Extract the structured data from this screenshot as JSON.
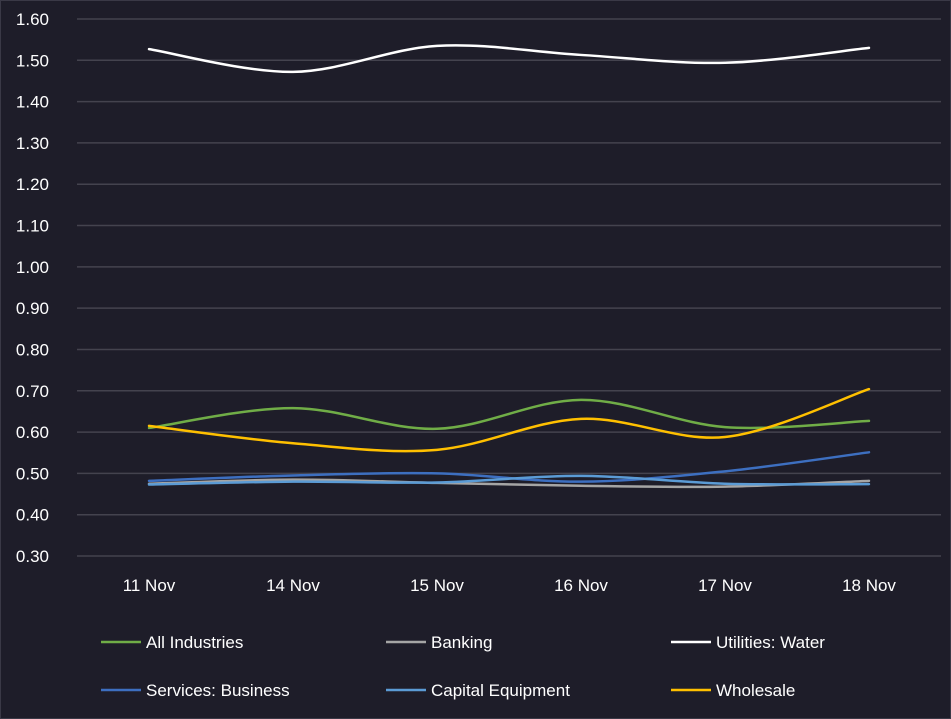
{
  "chart_data": {
    "type": "line",
    "categories": [
      "11 Nov",
      "14 Nov",
      "15 Nov",
      "16 Nov",
      "17 Nov",
      "18 Nov"
    ],
    "ylim": [
      0.3,
      1.6
    ],
    "yticks": [
      "0.30",
      "0.40",
      "0.50",
      "0.60",
      "0.70",
      "0.80",
      "0.90",
      "1.00",
      "1.10",
      "1.20",
      "1.30",
      "1.40",
      "1.50",
      "1.60"
    ],
    "grid": true,
    "smooth": true,
    "legend_position": "bottom",
    "series": [
      {
        "name": "All Industries",
        "color": "#70ad47",
        "values": [
          0.61,
          0.658,
          0.608,
          0.678,
          0.612,
          0.627
        ]
      },
      {
        "name": "Banking",
        "color": "#a5a5a5",
        "values": [
          0.475,
          0.485,
          0.477,
          0.47,
          0.468,
          0.482
        ]
      },
      {
        "name": "Utilities: Water",
        "color": "#ffffff",
        "values": [
          1.527,
          1.472,
          1.535,
          1.513,
          1.494,
          1.53
        ]
      },
      {
        "name": "Services: Business",
        "color": "#3d6fc0",
        "values": [
          0.482,
          0.495,
          0.5,
          0.48,
          0.505,
          0.551
        ]
      },
      {
        "name": "Capital Equipment",
        "color": "#5b9bd5",
        "values": [
          0.473,
          0.48,
          0.478,
          0.494,
          0.475,
          0.474
        ]
      },
      {
        "name": "Wholesale",
        "color": "#ffc000",
        "values": [
          0.615,
          0.573,
          0.557,
          0.632,
          0.588,
          0.704
        ]
      }
    ]
  }
}
